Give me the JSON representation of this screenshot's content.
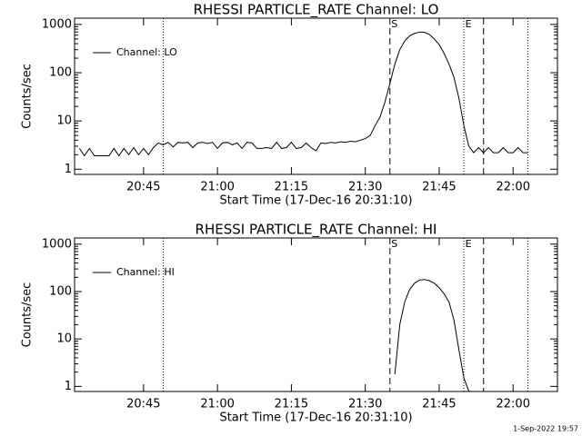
{
  "chart_data": [
    {
      "type": "line",
      "title": "RHESSI PARTICLE_RATE Channel: LO",
      "xlabel": "Start Time (17-Dec-16 20:31:10)",
      "ylabel": "Counts/sec",
      "log_y": true,
      "ylim": [
        0.78,
        1350
      ],
      "yticks": [
        1,
        10,
        100,
        1000
      ],
      "xlim": [
        "20:31",
        "22:09"
      ],
      "xticks": [
        "20:45",
        "21:00",
        "21:15",
        "21:30",
        "21:45",
        "22:00"
      ],
      "legend": "upper left",
      "markers": [
        {
          "x": "20:49",
          "style": "dotted"
        },
        {
          "x": "21:35",
          "style": "dashed",
          "label": "S"
        },
        {
          "x": "21:50",
          "style": "dotted",
          "label": "E"
        },
        {
          "x": "21:54",
          "style": "dashed"
        },
        {
          "x": "22:03",
          "style": "dotted"
        }
      ],
      "x": [
        "20:32",
        "20:33",
        "20:34",
        "20:35",
        "20:36",
        "20:37",
        "20:38",
        "20:39",
        "20:40",
        "20:41",
        "20:42",
        "20:43",
        "20:44",
        "20:45",
        "20:46",
        "20:47",
        "20:48",
        "20:49",
        "20:50",
        "20:51",
        "20:52",
        "20:53",
        "20:54",
        "20:55",
        "20:56",
        "20:57",
        "20:58",
        "20:59",
        "21:00",
        "21:01",
        "21:02",
        "21:03",
        "21:04",
        "21:05",
        "21:06",
        "21:07",
        "21:08",
        "21:09",
        "21:10",
        "21:11",
        "21:12",
        "21:13",
        "21:14",
        "21:15",
        "21:16",
        "21:17",
        "21:18",
        "21:19",
        "21:20",
        "21:21",
        "21:22",
        "21:23",
        "21:24",
        "21:25",
        "21:26",
        "21:27",
        "21:28",
        "21:29",
        "21:30",
        "21:31",
        "21:32",
        "21:33",
        "21:34",
        "21:35",
        "21:36",
        "21:37",
        "21:38",
        "21:39",
        "21:40",
        "21:41",
        "21:42",
        "21:43",
        "21:44",
        "21:45",
        "21:46",
        "21:47",
        "21:48",
        "21:49",
        "21:50",
        "21:51",
        "21:52",
        "21:53",
        "21:54",
        "21:55",
        "21:56",
        "21:57",
        "21:58",
        "21:59",
        "22:00",
        "22:01",
        "22:02",
        "22:03"
      ],
      "series": [
        {
          "name": "Channel: LO",
          "color": "#000000",
          "values": [
            2.7,
            1.9,
            2.7,
            1.9,
            1.9,
            1.9,
            1.9,
            2.7,
            1.9,
            2.7,
            2.0,
            2.8,
            2.0,
            2.7,
            2.0,
            2.8,
            3.5,
            3.2,
            3.6,
            2.9,
            3.6,
            3.5,
            3.6,
            2.8,
            3.5,
            3.6,
            3.4,
            3.6,
            2.7,
            3.5,
            3.6,
            3.2,
            3.5,
            2.7,
            3.6,
            3.5,
            2.7,
            2.7,
            2.8,
            2.7,
            3.6,
            2.7,
            2.8,
            3.6,
            2.7,
            2.8,
            3.5,
            2.8,
            2.4,
            3.5,
            3.4,
            3.6,
            3.5,
            3.7,
            3.6,
            3.8,
            3.7,
            4.0,
            4.3,
            5,
            8,
            12,
            25,
            60,
            150,
            300,
            450,
            580,
            650,
            700,
            690,
            620,
            500,
            380,
            250,
            150,
            80,
            30,
            8,
            3,
            2.2,
            2.8,
            2.2,
            2.8,
            2.2,
            2.2,
            2.8,
            2.2,
            2.2,
            2.8,
            2.2,
            2.2
          ]
        }
      ]
    },
    {
      "type": "line",
      "title": "RHESSI PARTICLE_RATE Channel: HI",
      "xlabel": "Start Time (17-Dec-16 20:31:10)",
      "ylabel": "Counts/sec",
      "log_y": true,
      "ylim": [
        0.78,
        1350
      ],
      "yticks": [
        1,
        10,
        100,
        1000
      ],
      "xlim": [
        "20:31",
        "22:09"
      ],
      "xticks": [
        "20:45",
        "21:00",
        "21:15",
        "21:30",
        "21:45",
        "22:00"
      ],
      "legend": "upper left",
      "markers": [
        {
          "x": "20:49",
          "style": "dotted"
        },
        {
          "x": "21:35",
          "style": "dashed",
          "label": "S"
        },
        {
          "x": "21:50",
          "style": "dotted",
          "label": "E"
        },
        {
          "x": "21:54",
          "style": "dashed"
        },
        {
          "x": "22:03",
          "style": "dotted"
        }
      ],
      "x": [
        "21:36",
        "21:37",
        "21:38",
        "21:39",
        "21:40",
        "21:41",
        "21:42",
        "21:43",
        "21:44",
        "21:45",
        "21:46",
        "21:47",
        "21:48",
        "21:49",
        "21:50",
        "21:51"
      ],
      "series": [
        {
          "name": "Channel: HI",
          "color": "#000000",
          "values": [
            1.8,
            20,
            60,
            110,
            150,
            175,
            180,
            170,
            150,
            120,
            90,
            60,
            25,
            6,
            1.5,
            0.8
          ]
        }
      ]
    }
  ],
  "footer": "1-Sep-2022 19:57"
}
